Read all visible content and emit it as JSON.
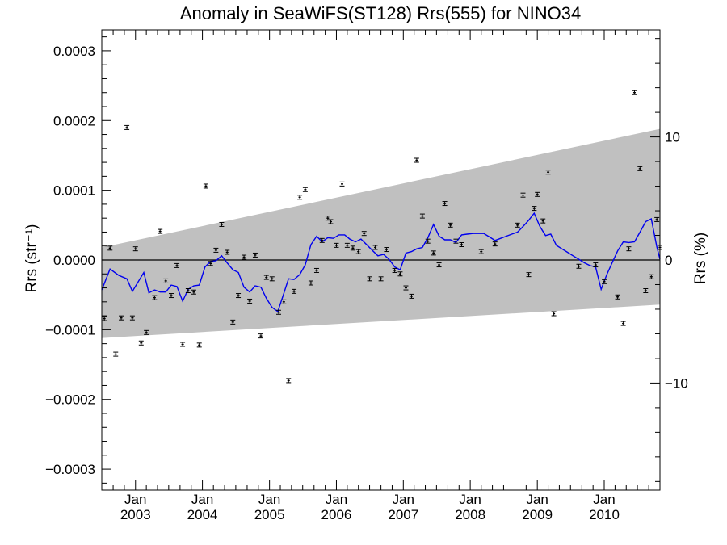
{
  "chart_data": {
    "type": "scatter",
    "title": "Anomaly in SeaWiFS(ST128) Rrs(555) for NINO34",
    "ylabel_left": "Rrs (str⁻¹)",
    "ylabel_right": "Rrs (%)",
    "xlabel": "",
    "xlim": [
      "2002-07-01",
      "2010-11-01"
    ],
    "ylim": [
      -0.00033,
      0.00033
    ],
    "ylim_right": [
      -18.7,
      18.7
    ],
    "y_ticks": [
      {
        "value": 0.0003,
        "label": "0.0003"
      },
      {
        "value": 0.0002,
        "label": "0.0002"
      },
      {
        "value": 0.0001,
        "label": "0.0001"
      },
      {
        "value": 0.0,
        "label": "0.0000"
      },
      {
        "value": -0.0001,
        "label": "−0.0001"
      },
      {
        "value": -0.0002,
        "label": "−0.0002"
      },
      {
        "value": -0.0003,
        "label": "−0.0003"
      }
    ],
    "y_right_ticks": [
      {
        "value": 10,
        "label": "10"
      },
      {
        "value": 0,
        "label": "0"
      },
      {
        "value": -10,
        "label": "−10"
      }
    ],
    "x_ticks": [
      {
        "date": "2003-01-01",
        "label": "Jan",
        "year": "2003"
      },
      {
        "date": "2004-01-01",
        "label": "Jan",
        "year": "2004"
      },
      {
        "date": "2005-01-01",
        "label": "Jan",
        "year": "2005"
      },
      {
        "date": "2006-01-01",
        "label": "Jan",
        "year": "2006"
      },
      {
        "date": "2007-01-01",
        "label": "Jan",
        "year": "2007"
      },
      {
        "date": "2008-01-01",
        "label": "Jan",
        "year": "2008"
      },
      {
        "date": "2009-01-01",
        "label": "Jan",
        "year": "2009"
      },
      {
        "date": "2010-01-01",
        "label": "Jan",
        "year": "2010"
      }
    ],
    "uncertainty_band": {
      "color": "#c0c0c0",
      "upper": [
        [
          "2002-07-01",
          1.8e-05
        ],
        [
          "2010-11-01",
          0.000188
        ]
      ],
      "lower": [
        [
          "2002-07-01",
          -0.000112
        ],
        [
          "2010-11-01",
          -6.4e-05
        ]
      ]
    },
    "zero_line": true,
    "colors": {
      "points": "#000000",
      "smooth": "#0000ee",
      "band": "#c0c0c0"
    },
    "series": [
      {
        "kind": "points_with_errorbars",
        "points": [
          [
            "2002-07-15",
            -8.4e-05
          ],
          [
            "2002-08-15",
            1.7e-05
          ],
          [
            "2002-09-15",
            -0.000135
          ],
          [
            "2002-10-15",
            -8.3e-05
          ],
          [
            "2002-11-15",
            0.00019
          ],
          [
            "2002-12-15",
            -8.3e-05
          ],
          [
            "2003-01-01",
            1.6e-05
          ],
          [
            "2003-02-01",
            -0.000119
          ],
          [
            "2003-03-01",
            -0.000104
          ],
          [
            "2003-04-15",
            -5.4e-05
          ],
          [
            "2003-05-15",
            4.1e-05
          ],
          [
            "2003-06-15",
            -3e-05
          ],
          [
            "2003-07-15",
            -5.1e-05
          ],
          [
            "2003-08-15",
            -8e-06
          ],
          [
            "2003-09-15",
            -0.000121
          ],
          [
            "2003-10-15",
            -4.4e-05
          ],
          [
            "2003-11-15",
            -4.6e-05
          ],
          [
            "2003-12-15",
            -0.000122
          ],
          [
            "2004-01-20",
            0.000106
          ],
          [
            "2004-02-15",
            -5e-06
          ],
          [
            "2004-03-15",
            1.4e-05
          ],
          [
            "2004-04-15",
            5.1e-05
          ],
          [
            "2004-05-15",
            1.1e-05
          ],
          [
            "2004-06-15",
            -8.9e-05
          ],
          [
            "2004-07-15",
            -5.1e-05
          ],
          [
            "2004-08-15",
            4e-06
          ],
          [
            "2004-09-15",
            -5.9e-05
          ],
          [
            "2004-10-15",
            7e-06
          ],
          [
            "2004-11-15",
            -0.000109
          ],
          [
            "2004-12-15",
            -2.5e-05
          ],
          [
            "2005-01-15",
            -2.7e-05
          ],
          [
            "2005-02-20",
            -7.5e-05
          ],
          [
            "2005-03-20",
            -6e-05
          ],
          [
            "2005-04-15",
            -0.000173
          ],
          [
            "2005-05-15",
            -4.5e-05
          ],
          [
            "2005-06-15",
            9e-05
          ],
          [
            "2005-07-15",
            0.000101
          ],
          [
            "2005-08-15",
            -3.3e-05
          ],
          [
            "2005-09-15",
            -1.5e-05
          ],
          [
            "2005-10-15",
            2.8e-05
          ],
          [
            "2005-11-15",
            6e-05
          ],
          [
            "2005-12-01",
            5.5e-05
          ],
          [
            "2006-01-01",
            2.1e-05
          ],
          [
            "2006-02-01",
            0.000109
          ],
          [
            "2006-03-01",
            2.1e-05
          ],
          [
            "2006-04-01",
            1.7e-05
          ],
          [
            "2006-05-01",
            1.2e-05
          ],
          [
            "2006-06-01",
            3.8e-05
          ],
          [
            "2006-07-01",
            -2.7e-05
          ],
          [
            "2006-08-01",
            1.8e-05
          ],
          [
            "2006-09-01",
            -2.7e-05
          ],
          [
            "2006-10-01",
            1.5e-05
          ],
          [
            "2006-11-15",
            -1.5e-05
          ],
          [
            "2006-12-15",
            -2e-05
          ],
          [
            "2007-01-15",
            -4e-05
          ],
          [
            "2007-02-15",
            -5.2e-05
          ],
          [
            "2007-03-15",
            0.000143
          ],
          [
            "2007-04-15",
            6.3e-05
          ],
          [
            "2007-05-15",
            2.7e-05
          ],
          [
            "2007-06-15",
            1e-05
          ],
          [
            "2007-07-15",
            -7e-06
          ],
          [
            "2007-08-15",
            8.1e-05
          ],
          [
            "2007-09-15",
            5e-05
          ],
          [
            "2007-10-15",
            2.7e-05
          ],
          [
            "2007-11-15",
            2.2e-05
          ],
          [
            "2008-03-01",
            1.2e-05
          ],
          [
            "2008-05-15",
            2.3e-05
          ],
          [
            "2008-09-15",
            5e-05
          ],
          [
            "2008-10-15",
            9.3e-05
          ],
          [
            "2008-11-15",
            -2.1e-05
          ],
          [
            "2008-12-15",
            7.4e-05
          ],
          [
            "2009-01-01",
            9.4e-05
          ],
          [
            "2009-02-01",
            5.6e-05
          ],
          [
            "2009-03-01",
            0.000126
          ],
          [
            "2009-04-01",
            -7.7e-05
          ],
          [
            "2009-08-15",
            -9e-06
          ],
          [
            "2009-11-15",
            -7e-06
          ],
          [
            "2010-01-01",
            -3.1e-05
          ],
          [
            "2010-03-15",
            -5.3e-05
          ],
          [
            "2010-04-15",
            -9.1e-05
          ],
          [
            "2010-05-15",
            1.6e-05
          ],
          [
            "2010-06-15",
            0.00024
          ],
          [
            "2010-07-15",
            0.000131
          ],
          [
            "2010-08-15",
            -4.4e-05
          ],
          [
            "2010-09-15",
            -2.4e-05
          ],
          [
            "2010-10-15",
            5.8e-05
          ],
          [
            "2010-11-01",
            1.8e-05
          ]
        ]
      },
      {
        "kind": "smoothed_line",
        "points": [
          [
            "2002-07-01",
            -4.3e-05
          ],
          [
            "2002-08-15",
            -1.3e-05
          ],
          [
            "2002-10-01",
            -2.2e-05
          ],
          [
            "2002-11-15",
            -2.7e-05
          ],
          [
            "2002-12-15",
            -4.5e-05
          ],
          [
            "2003-02-15",
            -1.8e-05
          ],
          [
            "2003-03-15",
            -4.7e-05
          ],
          [
            "2003-04-15",
            -4.3e-05
          ],
          [
            "2003-05-15",
            -4.6e-05
          ],
          [
            "2003-06-15",
            -4.6e-05
          ],
          [
            "2003-07-15",
            -3.6e-05
          ],
          [
            "2003-08-15",
            -3.8e-05
          ],
          [
            "2003-09-15",
            -5.9e-05
          ],
          [
            "2003-10-15",
            -4.2e-05
          ],
          [
            "2003-11-15",
            -3.7e-05
          ],
          [
            "2003-12-15",
            -3.6e-05
          ],
          [
            "2004-01-15",
            -1e-05
          ],
          [
            "2004-02-15",
            -2e-06
          ],
          [
            "2004-03-15",
            -1e-06
          ],
          [
            "2004-04-15",
            6e-06
          ],
          [
            "2004-05-15",
            -4e-06
          ],
          [
            "2004-06-15",
            -1.4e-05
          ],
          [
            "2004-07-15",
            -1.8e-05
          ],
          [
            "2004-08-15",
            -3.9e-05
          ],
          [
            "2004-09-15",
            -4.6e-05
          ],
          [
            "2004-10-15",
            -3.7e-05
          ],
          [
            "2004-11-15",
            -3.9e-05
          ],
          [
            "2004-12-15",
            -5.5e-05
          ],
          [
            "2005-01-15",
            -6.8e-05
          ],
          [
            "2005-02-15",
            -7.4e-05
          ],
          [
            "2005-03-15",
            -5.2e-05
          ],
          [
            "2005-04-15",
            -2.7e-05
          ],
          [
            "2005-05-15",
            -2.8e-05
          ],
          [
            "2005-06-15",
            -2.1e-05
          ],
          [
            "2005-07-15",
            -7e-06
          ],
          [
            "2005-08-15",
            2.2e-05
          ],
          [
            "2005-09-15",
            3.4e-05
          ],
          [
            "2005-10-15",
            2.6e-05
          ],
          [
            "2005-11-15",
            3.2e-05
          ],
          [
            "2005-12-15",
            3.1e-05
          ],
          [
            "2006-01-15",
            3.6e-05
          ],
          [
            "2006-02-15",
            3.6e-05
          ],
          [
            "2006-03-15",
            3e-05
          ],
          [
            "2006-04-15",
            2.6e-05
          ],
          [
            "2006-05-15",
            3e-05
          ],
          [
            "2006-06-15",
            2.2e-05
          ],
          [
            "2006-07-15",
            1.4e-05
          ],
          [
            "2006-08-15",
            6e-06
          ],
          [
            "2006-09-15",
            8e-06
          ],
          [
            "2006-10-15",
            1e-06
          ],
          [
            "2006-11-15",
            -1e-05
          ],
          [
            "2006-12-15",
            -1.4e-05
          ],
          [
            "2007-01-15",
            1e-05
          ],
          [
            "2007-02-15",
            1.2e-05
          ],
          [
            "2007-03-15",
            1.6e-05
          ],
          [
            "2007-04-15",
            1.8e-05
          ],
          [
            "2007-05-15",
            3.2e-05
          ],
          [
            "2007-06-15",
            5.1e-05
          ],
          [
            "2007-07-15",
            3.4e-05
          ],
          [
            "2007-08-15",
            2.9e-05
          ],
          [
            "2007-09-15",
            2.9e-05
          ],
          [
            "2007-10-15",
            2.5e-05
          ],
          [
            "2007-11-15",
            3.6e-05
          ],
          [
            "2007-12-15",
            3.7e-05
          ],
          [
            "2008-01-15",
            3.8e-05
          ],
          [
            "2008-02-15",
            3.8e-05
          ],
          [
            "2008-03-15",
            3.8e-05
          ],
          [
            "2008-04-15",
            3.3e-05
          ],
          [
            "2008-05-15",
            2.8e-05
          ],
          [
            "2008-06-15",
            3.1e-05
          ],
          [
            "2008-07-15",
            3.4e-05
          ],
          [
            "2008-08-15",
            3.7e-05
          ],
          [
            "2008-09-15",
            4e-05
          ],
          [
            "2008-10-15",
            4.8e-05
          ],
          [
            "2008-11-15",
            5.7e-05
          ],
          [
            "2008-12-15",
            6.7e-05
          ],
          [
            "2009-01-15",
            4.8e-05
          ],
          [
            "2009-02-15",
            3.5e-05
          ],
          [
            "2009-03-15",
            3.7e-05
          ],
          [
            "2009-04-15",
            2.1e-05
          ],
          [
            "2009-05-15",
            1.6e-05
          ],
          [
            "2009-06-15",
            1.1e-05
          ],
          [
            "2009-07-15",
            6e-06
          ],
          [
            "2009-08-15",
            1e-06
          ],
          [
            "2009-09-15",
            -4e-06
          ],
          [
            "2009-10-15",
            -8e-06
          ],
          [
            "2009-11-15",
            -1e-05
          ],
          [
            "2009-12-15",
            -4.2e-05
          ],
          [
            "2010-01-15",
            -2.1e-05
          ],
          [
            "2010-02-15",
            -3e-06
          ],
          [
            "2010-03-15",
            1.3e-05
          ],
          [
            "2010-04-15",
            2.6e-05
          ],
          [
            "2010-05-15",
            2.5e-05
          ],
          [
            "2010-06-15",
            2.6e-05
          ],
          [
            "2010-07-15",
            4e-05
          ],
          [
            "2010-08-15",
            5.5e-05
          ],
          [
            "2010-09-15",
            5.9e-05
          ],
          [
            "2010-10-15",
            1.9e-05
          ],
          [
            "2010-11-01",
            1e-06
          ]
        ]
      }
    ]
  }
}
